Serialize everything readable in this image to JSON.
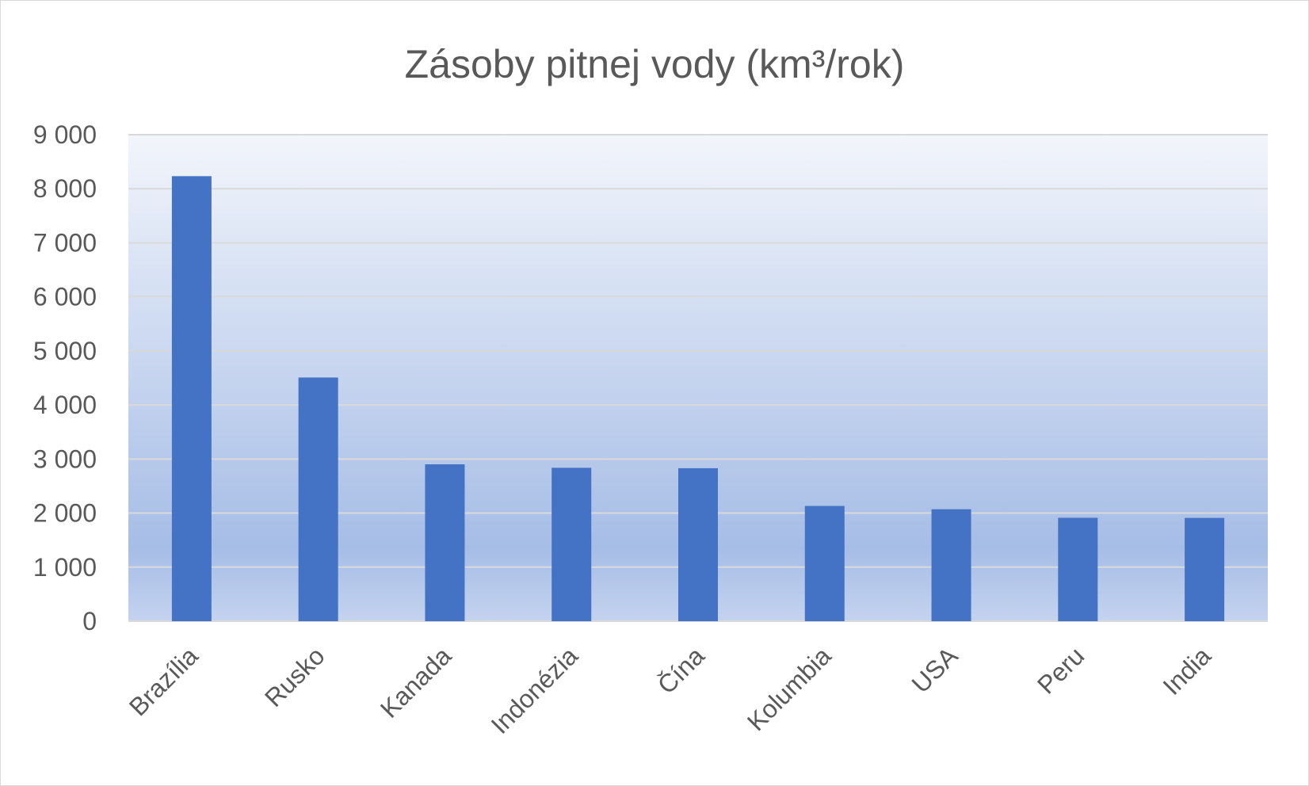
{
  "chart_data": {
    "type": "bar",
    "title": "Zásoby pitnej vody (km³/rok)",
    "xlabel": "",
    "ylabel": "",
    "categories": [
      "Brazília",
      "Rusko",
      "Kanada",
      "Indonézia",
      "Čína",
      "Kolumbia",
      "USA",
      "Peru",
      "India"
    ],
    "values": [
      8233,
      4508,
      2902,
      2838,
      2830,
      2132,
      2071,
      1913,
      1911
    ],
    "ylim": [
      0,
      9000
    ],
    "yticks": [
      "0",
      "1 000",
      "2 000",
      "3 000",
      "4 000",
      "5 000",
      "6 000",
      "7 000",
      "8 000",
      "9 000"
    ],
    "grid": true,
    "legend": "none",
    "colors": {
      "bar": "#4472C4",
      "gradient_top": "#F2F5FB",
      "gradient_bottom": "#A6BDE6",
      "gridline": "#D9D9D9",
      "text": "#595959"
    }
  }
}
